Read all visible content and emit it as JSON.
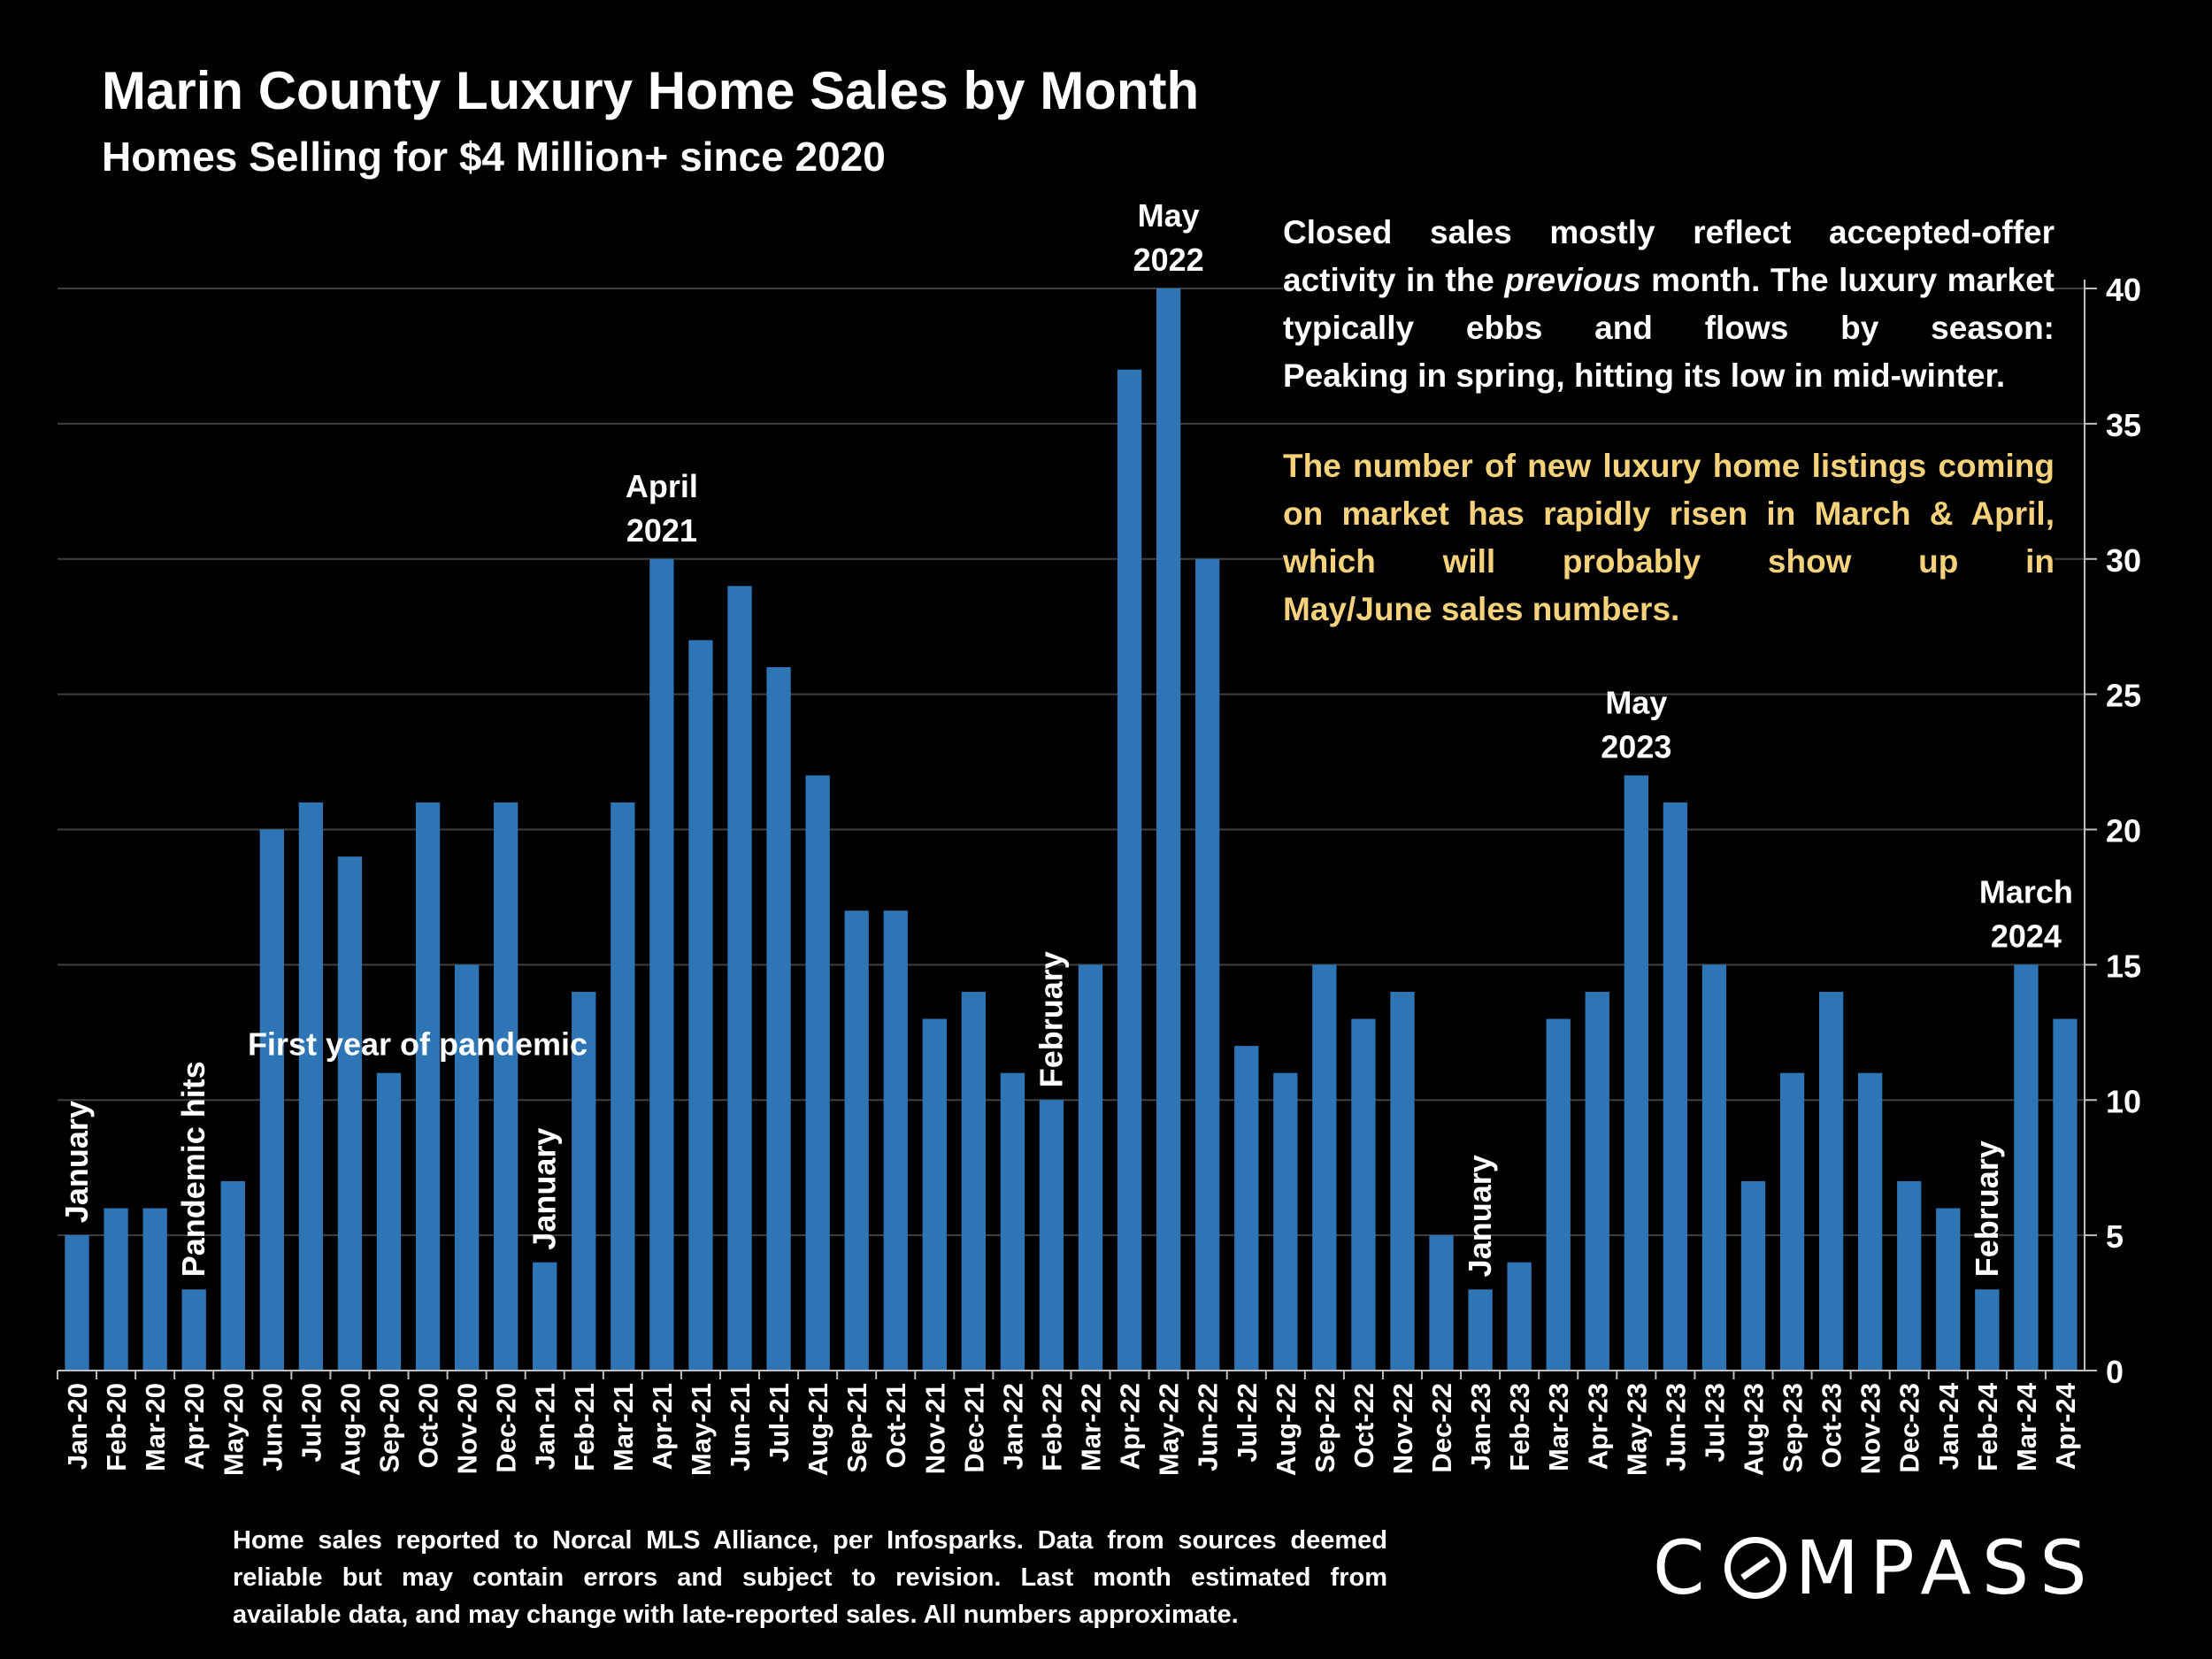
{
  "header": {
    "title": "Marin County Luxury Home Sales by Month",
    "subtitle": "Homes Selling for $4 Million+ since 2020"
  },
  "notes": {
    "p1_text": "Closed sales mostly reflect accepted-offer activity in the ",
    "p1_italic": "previous",
    "p1_text2": " month. The luxury market typically ebbs and flows by season:",
    "p1_last": "Peaking in spring, hitting its low in mid-winter.",
    "p2_text": "The number of new luxury home listings coming on market has rapidly risen in March & April, which will probably show up in",
    "p2_last": "May/June sales numbers."
  },
  "footnote": {
    "line1": "Home sales reported to Norcal MLS Alliance, per Infosparks. Data from sources deemed",
    "line2": "reliable but may contain errors and subject to revision.  Last month estimated from",
    "line3": "available data, and may change with late-reported sales. All numbers approximate."
  },
  "brand": {
    "logo": "COMPASS"
  },
  "colors": {
    "background": "#000000",
    "bar": "#2e75b6",
    "text": "#ffffff",
    "highlight_text": "#f6d27a",
    "gridline": "#404040"
  },
  "chart_data": {
    "type": "bar",
    "categories": [
      "Jan-20",
      "Feb-20",
      "Mar-20",
      "Apr-20",
      "May-20",
      "Jun-20",
      "Jul-20",
      "Aug-20",
      "Sep-20",
      "Oct-20",
      "Nov-20",
      "Dec-20",
      "Jan-21",
      "Feb-21",
      "Mar-21",
      "Apr-21",
      "May-21",
      "Jun-21",
      "Jul-21",
      "Aug-21",
      "Sep-21",
      "Oct-21",
      "Nov-21",
      "Dec-21",
      "Jan-22",
      "Feb-22",
      "Mar-22",
      "Apr-22",
      "May-22",
      "Jun-22",
      "Jul-22",
      "Aug-22",
      "Sep-22",
      "Oct-22",
      "Nov-22",
      "Dec-22",
      "Jan-23",
      "Feb-23",
      "Mar-23",
      "Apr-23",
      "May-23",
      "Jun-23",
      "Jul-23",
      "Aug-23",
      "Sep-23",
      "Oct-23",
      "Nov-23",
      "Dec-23",
      "Jan-24",
      "Feb-24",
      "Mar-24",
      "Apr-24"
    ],
    "values": [
      5,
      6,
      6,
      3,
      7,
      20,
      21,
      19,
      11,
      21,
      15,
      21,
      4,
      14,
      21,
      30,
      27,
      29,
      26,
      22,
      17,
      17,
      13,
      14,
      11,
      10,
      15,
      37,
      40,
      30,
      12,
      11,
      15,
      13,
      14,
      5,
      3,
      4,
      13,
      14,
      22,
      21,
      15,
      7,
      11,
      14,
      11,
      7,
      6,
      3,
      15,
      13
    ],
    "ylim": [
      0,
      40
    ],
    "yticks": [
      0,
      5,
      10,
      15,
      20,
      25,
      30,
      35,
      40
    ],
    "y_axis_side": "right",
    "grid": true,
    "annotations": [
      {
        "index": 0,
        "lines": [
          "January"
        ],
        "rotated": true
      },
      {
        "index": 3,
        "lines": [
          "Pandemic hits"
        ],
        "rotated": true
      },
      {
        "index": 8,
        "lines": [
          "First year of pandemic"
        ],
        "rotated": false
      },
      {
        "index": 12,
        "lines": [
          "January"
        ],
        "rotated": true
      },
      {
        "index": 15,
        "lines": [
          "April",
          "2021"
        ],
        "rotated": false
      },
      {
        "index": 25,
        "lines": [
          "February"
        ],
        "rotated": true
      },
      {
        "index": 28,
        "lines": [
          "May",
          "2022"
        ],
        "rotated": false
      },
      {
        "index": 36,
        "lines": [
          "January"
        ],
        "rotated": true
      },
      {
        "index": 40,
        "lines": [
          "May",
          "2023"
        ],
        "rotated": false
      },
      {
        "index": 49,
        "lines": [
          "February"
        ],
        "rotated": true
      },
      {
        "index": 50,
        "lines": [
          "March",
          "2024"
        ],
        "rotated": false
      }
    ]
  }
}
